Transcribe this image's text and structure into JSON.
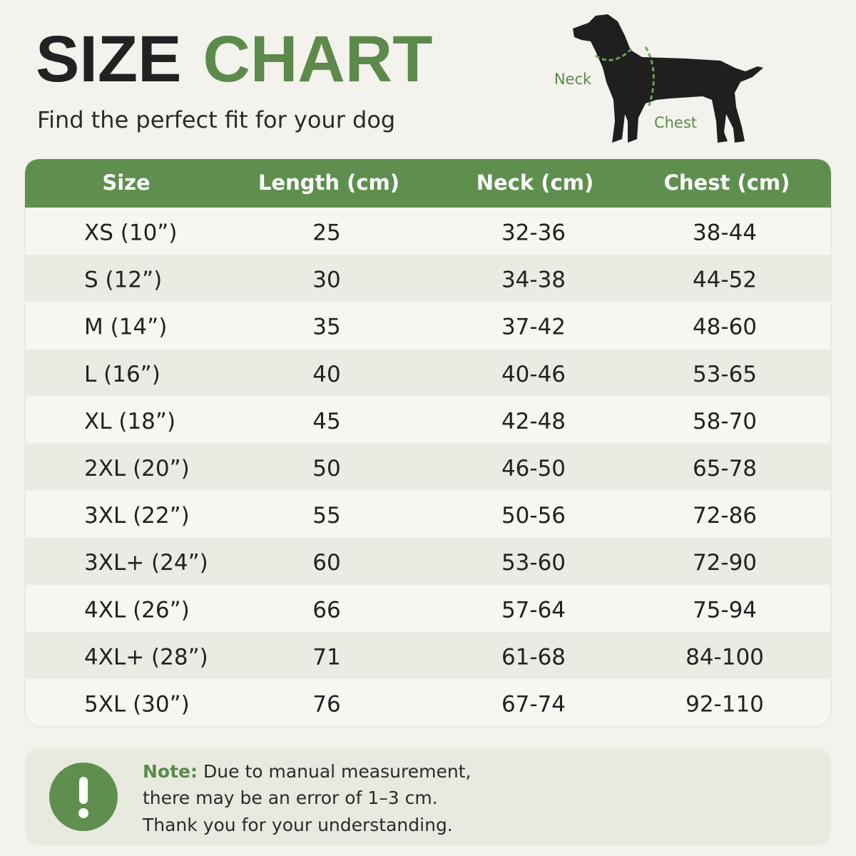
{
  "header": {
    "title_first": "SIZE",
    "title_second": "CHART",
    "subtitle": "Find the perfect fit for your dog"
  },
  "diagram": {
    "neck_label": "Neck",
    "chest_label": "Chest"
  },
  "table": {
    "columns": [
      "Size",
      "Length (cm)",
      "Neck (cm)",
      "Chest (cm)"
    ],
    "rows": [
      [
        "XS (10”)",
        "25",
        "32-36",
        "38-44"
      ],
      [
        "S (12”)",
        "30",
        "34-38",
        "44-52"
      ],
      [
        "M (14”)",
        "35",
        "37-42",
        "48-60"
      ],
      [
        "L (16”)",
        "40",
        "40-46",
        "53-65"
      ],
      [
        "XL (18”)",
        "45",
        "42-48",
        "58-70"
      ],
      [
        "2XL (20”)",
        "50",
        "46-50",
        "65-78"
      ],
      [
        "3XL (22”)",
        "55",
        "50-56",
        "72-86"
      ],
      [
        "3XL+ (24”)",
        "60",
        "53-60",
        "72-90"
      ],
      [
        "4XL (26”)",
        "66",
        "57-64",
        "75-94"
      ],
      [
        "4XL+ (28”)",
        "71",
        "61-68",
        "84-100"
      ],
      [
        "5XL (30”)",
        "76",
        "67-74",
        "92-110"
      ]
    ]
  },
  "note": {
    "label": "Note:",
    "lines": [
      "Due to manual measurement,",
      "there may be an error of 1–3 cm.",
      "Thank you for your understanding."
    ]
  }
}
